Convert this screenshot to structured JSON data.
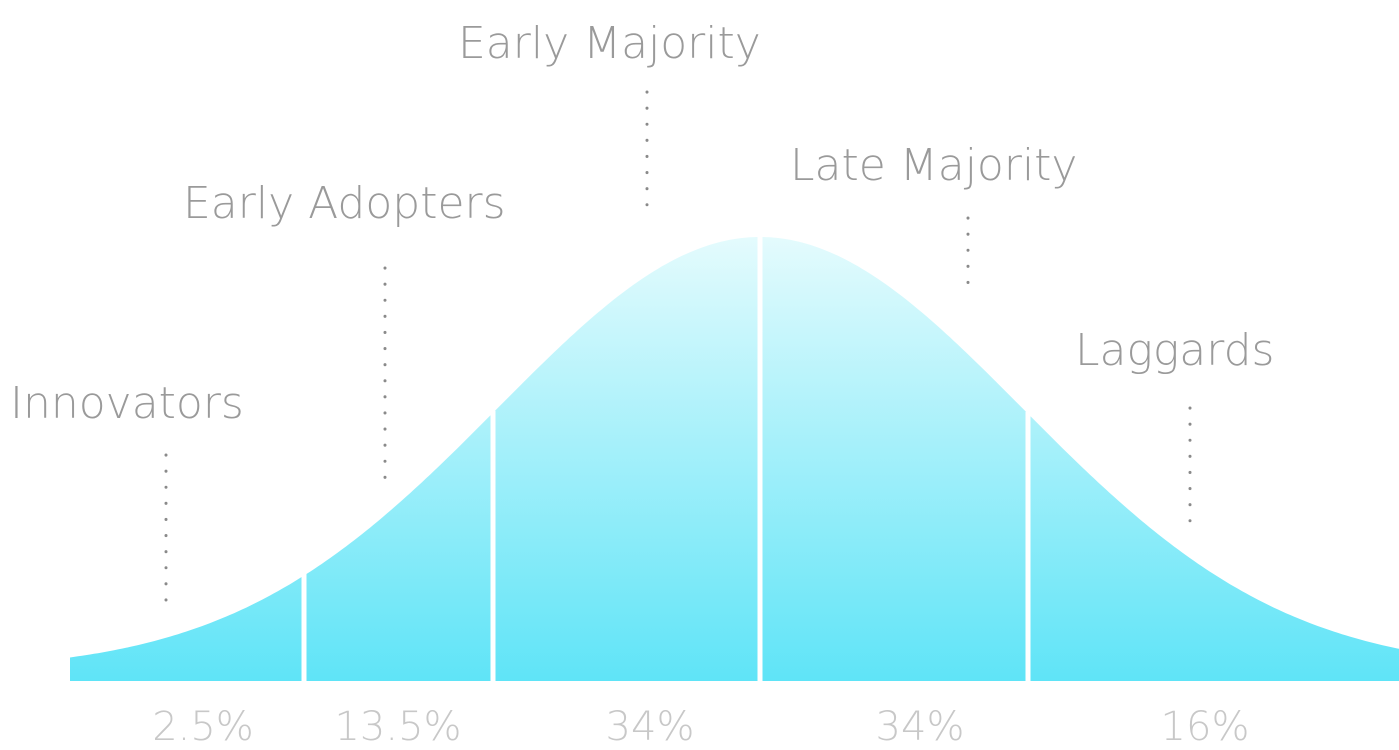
{
  "diagram": {
    "segments": [
      {
        "name": "Innovators",
        "percent": "2.5%"
      },
      {
        "name": "Early Adopters",
        "percent": "13.5%"
      },
      {
        "name": "Early Majority",
        "percent": "34%"
      },
      {
        "name": "Late Majority",
        "percent": "34%"
      },
      {
        "name": "Laggards",
        "percent": "16%"
      }
    ],
    "colors": {
      "curve_top": "#e4fbfd",
      "curve_bottom": "#5fe4f7",
      "label_text": "#9a9a9a",
      "percent_text": "#c8c8c8",
      "leader_dots": "#8a8a8a",
      "divider": "#ffffff"
    }
  }
}
